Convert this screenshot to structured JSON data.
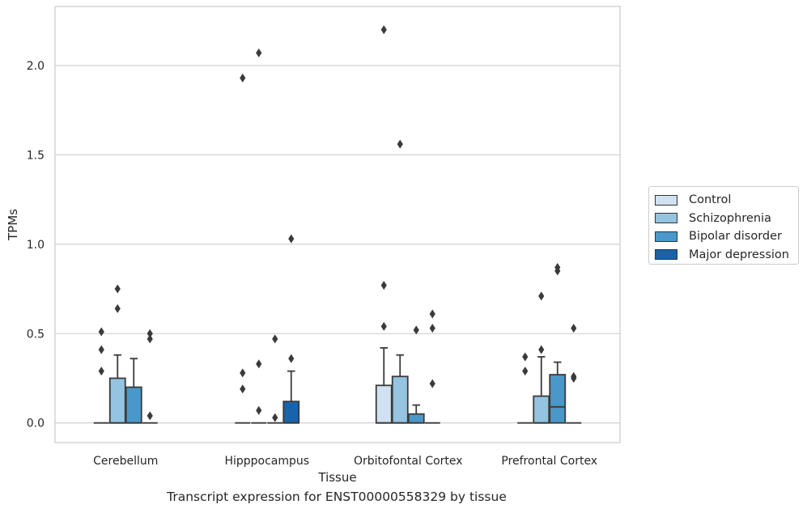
{
  "caption": "Transcript expression for ENST00000558329 by tissue",
  "chart_data": {
    "type": "box",
    "xlabel": "Tissue",
    "ylabel": "TPMs",
    "ylim": [
      -0.11,
      2.33
    ],
    "yticks": [
      0.0,
      0.5,
      1.0,
      1.5,
      2.0
    ],
    "ytick_labels": [
      "0.0",
      "0.5",
      "1.0",
      "1.5",
      "2.0"
    ],
    "grid": "y",
    "legend_position": "right, outside plot",
    "categories": [
      "Cerebellum",
      "Hipppocampus",
      "Orbitofontal Cortex",
      "Prefrontal Cortex"
    ],
    "series": [
      {
        "name": "Control",
        "color": "#d0e1f2",
        "boxes": [
          {
            "q1": 0,
            "median": 0,
            "q3": 0,
            "whisker_low": 0,
            "whisker_high": 0,
            "outliers": [
              0.51,
              0.41,
              0.29
            ]
          },
          {
            "q1": 0,
            "median": 0,
            "q3": 0,
            "whisker_low": 0,
            "whisker_high": 0,
            "outliers": [
              1.93,
              0.28,
              0.19
            ]
          },
          {
            "q1": 0,
            "median": 0,
            "q3": 0.21,
            "whisker_low": 0,
            "whisker_high": 0.42,
            "outliers": [
              2.2,
              0.77,
              0.54
            ]
          },
          {
            "q1": 0,
            "median": 0,
            "q3": 0,
            "whisker_low": 0,
            "whisker_high": 0,
            "outliers": [
              0.37,
              0.29
            ]
          }
        ]
      },
      {
        "name": "Schizophrenia",
        "color": "#94c4df",
        "boxes": [
          {
            "q1": 0,
            "median": 0,
            "q3": 0.25,
            "whisker_low": 0,
            "whisker_high": 0.38,
            "outliers": [
              0.75,
              0.64
            ]
          },
          {
            "q1": 0,
            "median": 0,
            "q3": 0,
            "whisker_low": 0,
            "whisker_high": 0,
            "outliers": [
              2.07,
              0.33,
              0.07
            ]
          },
          {
            "q1": 0,
            "median": 0,
            "q3": 0.26,
            "whisker_low": 0,
            "whisker_high": 0.38,
            "outliers": [
              1.56
            ]
          },
          {
            "q1": 0,
            "median": 0,
            "q3": 0.15,
            "whisker_low": 0,
            "whisker_high": 0.37,
            "outliers": [
              0.71,
              0.41
            ]
          }
        ]
      },
      {
        "name": "Bipolar disorder",
        "color": "#4a98c9",
        "boxes": [
          {
            "q1": 0,
            "median": 0,
            "q3": 0.2,
            "whisker_low": 0,
            "whisker_high": 0.36,
            "outliers": []
          },
          {
            "q1": 0,
            "median": 0,
            "q3": 0,
            "whisker_low": 0,
            "whisker_high": 0,
            "outliers": [
              0.47,
              0.03
            ]
          },
          {
            "q1": 0,
            "median": 0,
            "q3": 0.05,
            "whisker_low": 0,
            "whisker_high": 0.1,
            "outliers": [
              0.52
            ]
          },
          {
            "q1": 0,
            "median": 0.09,
            "q3": 0.27,
            "whisker_low": 0,
            "whisker_high": 0.34,
            "outliers": [
              0.87,
              0.85
            ]
          }
        ]
      },
      {
        "name": "Major depression",
        "color": "#1764ab",
        "boxes": [
          {
            "q1": 0,
            "median": 0,
            "q3": 0,
            "whisker_low": 0,
            "whisker_high": 0,
            "outliers": [
              0.5,
              0.47,
              0.04
            ]
          },
          {
            "q1": 0,
            "median": 0,
            "q3": 0.12,
            "whisker_low": 0,
            "whisker_high": 0.29,
            "outliers": [
              1.03,
              0.36
            ]
          },
          {
            "q1": 0,
            "median": 0,
            "q3": 0,
            "whisker_low": 0,
            "whisker_high": 0,
            "outliers": [
              0.61,
              0.53,
              0.22
            ]
          },
          {
            "q1": 0,
            "median": 0,
            "q3": 0,
            "whisker_low": 0,
            "whisker_high": 0,
            "outliers": [
              0.53,
              0.26,
              0.25
            ]
          }
        ]
      }
    ]
  }
}
